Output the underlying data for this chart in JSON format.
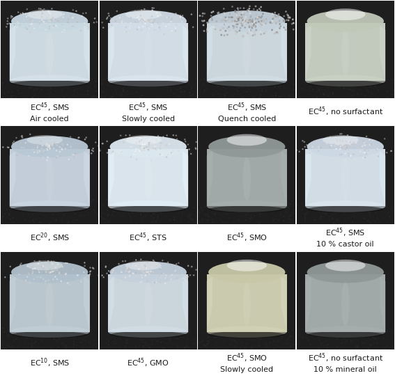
{
  "rows": 3,
  "cols": 4,
  "labels": [
    [
      "EC$^{45}$, SMS\nAir cooled",
      "EC$^{45}$, SMS\nSlowly cooled",
      "EC$^{45}$, SMS\nQuench cooled",
      "EC$^{45}$, no surfactant"
    ],
    [
      "EC$^{20}$, SMS",
      "EC$^{45}$, STS",
      "EC$^{45}$, SMO",
      "EC$^{45}$, SMS\n10 % castor oil"
    ],
    [
      "EC$^{10}$, SMS",
      "EC$^{45}$, GMO",
      "EC$^{45}$, SMO\nSlowly cooled",
      "EC$^{45}$, no surfactant\n10 % mineral oil"
    ]
  ],
  "bg_color": "#ffffff",
  "label_fontsize": 8.0,
  "fig_width": 5.67,
  "fig_height": 5.43,
  "dpi": 100,
  "label_color": "#1a1a1a",
  "photo_bg": "#2a2a2a",
  "cell_top_colors": [
    [
      "#c8d8e2",
      "#d0dce8",
      "#c5d2dc",
      "#c0c8b8"
    ],
    [
      "#b8c8d4",
      "#dce8f0",
      "#909898",
      "#ccd8e4"
    ],
    [
      "#b0c0cc",
      "#c4d0dc",
      "#c8c8a8",
      "#909898"
    ]
  ],
  "cell_side_colors": [
    [
      "#d8e4ec",
      "#dce8f0",
      "#d4e0e8",
      "#ccd4c8"
    ],
    [
      "#ccd8e4",
      "#e4f0f8",
      "#a8b0b0",
      "#dce8f0"
    ],
    [
      "#c4d0d8",
      "#d4e0e8",
      "#d4d4b8",
      "#a8b0b0"
    ]
  ]
}
